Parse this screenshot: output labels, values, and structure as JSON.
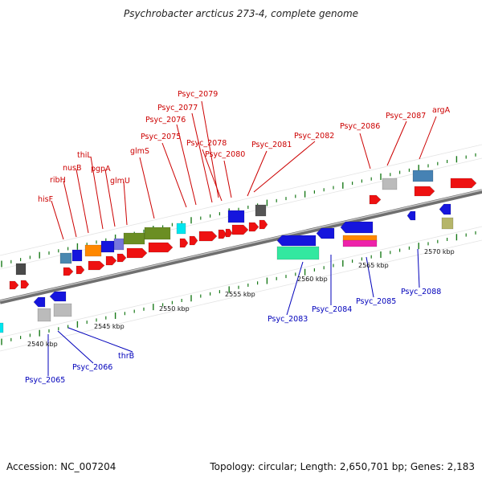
{
  "title": "Psychrobacter arcticus 273-4, complete genome",
  "footer": {
    "accession": "Accession: NC_007204",
    "summary": "Topology: circular; Length: 2,650,701 bp; Genes: 2,183"
  },
  "colors": {
    "forward_label": "#cc0000",
    "reverse_label": "#0000bb",
    "backbone": "#8a8a8a",
    "tick": "#1a7a1a"
  },
  "scale_labels": [
    "2540 kbp",
    "2545 kbp",
    "2550 kbp",
    "2555 kbp",
    "2560 kbp",
    "2565 kbp",
    "2570 kbp"
  ],
  "forward_genes": [
    "hisF",
    "ribH",
    "nusB",
    "thiL",
    "pgpA",
    "glmU",
    "glmS",
    "Psyc_2075",
    "Psyc_2076",
    "Psyc_2077",
    "Psyc_2078",
    "Psyc_2079",
    "Psyc_2080",
    "Psyc_2081",
    "Psyc_2082",
    "Psyc_2086",
    "Psyc_2087",
    "argA"
  ],
  "reverse_genes": [
    "Psyc_2065",
    "Psyc_2066",
    "thrB",
    "Psyc_2083",
    "Psyc_2084",
    "Psyc_2085",
    "Psyc_2088"
  ]
}
